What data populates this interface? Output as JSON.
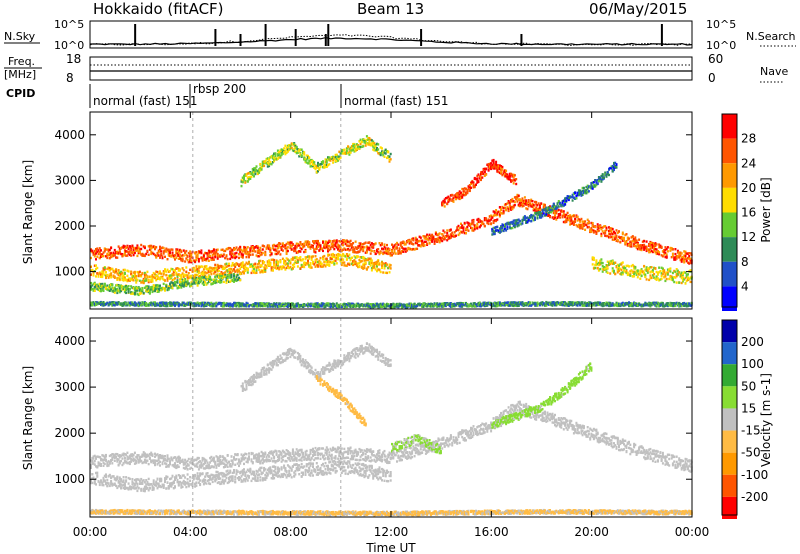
{
  "header": {
    "station": "Hokkaido (fitACF)",
    "beam": "Beam 13",
    "date": "06/May/2015"
  },
  "top_panel": {
    "left_label": "N.Sky",
    "left_ticks": [
      "10^5",
      "10^0"
    ],
    "right_ticks": [
      "10^5",
      "10^0"
    ],
    "right_label": "N.Search"
  },
  "freq_panel": {
    "left_label": "Freq.",
    "left_unit": "[MHz]",
    "left_ticks": [
      "18",
      "8"
    ],
    "right_ticks": [
      "60",
      "0"
    ],
    "right_label": "Nave"
  },
  "cpid_panel": {
    "label": "CPID",
    "segments": [
      {
        "label": "normal (fast) 151",
        "start_hour": 0.0
      },
      {
        "label": "rbsp 200",
        "start_hour": 4.1
      },
      {
        "label": "normal (fast) 151",
        "start_hour": 10.0
      }
    ]
  },
  "chart_data": [
    {
      "type": "heatmap",
      "id": "power",
      "ylabel": "Slant Range [km]",
      "xlabel": "",
      "colorbar_label": "Power [dB]",
      "colorbar_ticks": [
        "28",
        "24",
        "20",
        "16",
        "12",
        "8",
        "4"
      ],
      "colors": [
        "#0000ff",
        "#2050c8",
        "#2e8b57",
        "#66cc33",
        "#ffdd00",
        "#ff9900",
        "#ff5500",
        "#ff0000"
      ],
      "y_ticks": [
        "4000",
        "3000",
        "2000",
        "1000"
      ],
      "ylim": [
        180,
        4500
      ],
      "xlim": [
        0,
        24
      ],
      "bands": [
        {
          "points": [
            [
              0,
              1400
            ],
            [
              2,
              1500
            ],
            [
              4,
              1350
            ],
            [
              6,
              1450
            ],
            [
              8,
              1550
            ],
            [
              10,
              1600
            ],
            [
              12,
              1500
            ],
            [
              14,
              1800
            ],
            [
              16,
              2200
            ],
            [
              17,
              2600
            ],
            [
              18,
              2400
            ],
            [
              20,
              2000
            ],
            [
              22,
              1600
            ],
            [
              24,
              1300
            ]
          ],
          "width": 250,
          "value": 26
        },
        {
          "points": [
            [
              0,
              1050
            ],
            [
              2,
              900
            ],
            [
              4,
              1000
            ],
            [
              6,
              1100
            ],
            [
              8,
              1200
            ],
            [
              10,
              1300
            ],
            [
              12,
              1100
            ]
          ],
          "width": 260,
          "value": 20
        },
        {
          "points": [
            [
              0,
              700
            ],
            [
              2,
              600
            ],
            [
              4,
              800
            ],
            [
              6,
              900
            ]
          ],
          "width": 180,
          "value": 14
        },
        {
          "points": [
            [
              6,
              3000
            ],
            [
              7,
              3400
            ],
            [
              8,
              3800
            ],
            [
              9,
              3300
            ],
            [
              10,
              3600
            ],
            [
              11,
              3900
            ],
            [
              12,
              3500
            ]
          ],
          "width": 200,
          "value": 16
        },
        {
          "points": [
            [
              14,
              2500
            ],
            [
              15,
              2800
            ],
            [
              16,
              3400
            ],
            [
              17,
              3000
            ]
          ],
          "width": 200,
          "value": 28
        },
        {
          "points": [
            [
              16,
              1900
            ],
            [
              18,
              2300
            ],
            [
              19,
              2600
            ],
            [
              20,
              2900
            ],
            [
              21,
              3400
            ]
          ],
          "width": 160,
          "value": 8
        },
        {
          "points": [
            [
              20,
              1200
            ],
            [
              22,
              1000
            ],
            [
              24,
              900
            ]
          ],
          "width": 300,
          "value": 18
        },
        {
          "points": [
            [
              0,
              320
            ],
            [
              6,
              300
            ],
            [
              12,
              280
            ],
            [
              18,
              320
            ],
            [
              24,
              300
            ]
          ],
          "width": 80,
          "value": 10
        }
      ]
    },
    {
      "type": "heatmap",
      "id": "velocity",
      "ylabel": "Slant Range [km]",
      "xlabel": "Time UT",
      "colorbar_label": "Velocity [m s-1]",
      "colorbar_ticks": [
        "200",
        "100",
        "50",
        "15",
        "-15",
        "-50",
        "-100",
        "-200"
      ],
      "colors": [
        "#ff0000",
        "#ff5500",
        "#ff9900",
        "#ffbb44",
        "#c0c0c0",
        "#88dd33",
        "#33aa33",
        "#2266cc",
        "#0000aa"
      ],
      "x_ticks": [
        "00:00",
        "04:00",
        "08:00",
        "12:00",
        "16:00",
        "20:00",
        "00:00"
      ],
      "y_ticks": [
        "4000",
        "3000",
        "2000",
        "1000"
      ],
      "ylim": [
        180,
        4500
      ],
      "xlim": [
        0,
        24
      ],
      "bands": [
        {
          "points": [
            [
              0,
              1400
            ],
            [
              2,
              1500
            ],
            [
              4,
              1350
            ],
            [
              6,
              1450
            ],
            [
              8,
              1550
            ],
            [
              10,
              1600
            ],
            [
              12,
              1500
            ],
            [
              14,
              1800
            ],
            [
              16,
              2200
            ],
            [
              17,
              2600
            ],
            [
              18,
              2400
            ],
            [
              20,
              2000
            ],
            [
              22,
              1600
            ],
            [
              24,
              1300
            ]
          ],
          "width": 260,
          "value": 0
        },
        {
          "points": [
            [
              0,
              1050
            ],
            [
              2,
              900
            ],
            [
              4,
              1000
            ],
            [
              6,
              1100
            ],
            [
              8,
              1200
            ],
            [
              10,
              1300
            ],
            [
              12,
              1100
            ]
          ],
          "width": 280,
          "value": 0
        },
        {
          "points": [
            [
              6,
              3000
            ],
            [
              7,
              3400
            ],
            [
              8,
              3800
            ],
            [
              9,
              3300
            ],
            [
              10,
              3600
            ],
            [
              11,
              3900
            ],
            [
              12,
              3500
            ]
          ],
          "width": 200,
          "value": 0
        },
        {
          "points": [
            [
              12,
              1700
            ],
            [
              13,
              1900
            ],
            [
              14,
              1650
            ]
          ],
          "width": 200,
          "value": 30
        },
        {
          "points": [
            [
              16,
              2200
            ],
            [
              18,
              2600
            ],
            [
              19,
              3000
            ],
            [
              20,
              3500
            ]
          ],
          "width": 180,
          "value": 40
        },
        {
          "points": [
            [
              9,
              3200
            ],
            [
              10,
              2800
            ],
            [
              11,
              2200
            ]
          ],
          "width": 150,
          "value": -40
        },
        {
          "points": [
            [
              0,
              320
            ],
            [
              6,
              300
            ],
            [
              12,
              280
            ],
            [
              18,
              320
            ],
            [
              24,
              300
            ]
          ],
          "width": 80,
          "value": -30
        }
      ]
    }
  ]
}
